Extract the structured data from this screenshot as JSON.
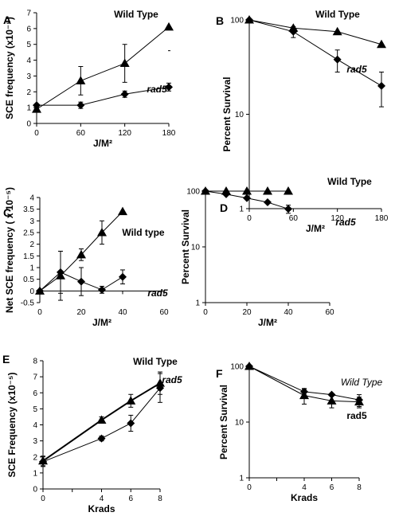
{
  "chart_data": [
    {
      "panel": "A",
      "type": "line",
      "xlabel": "J/M²",
      "ylabel": "SCE frequency (x10⁻⁵)",
      "xlim": [
        0,
        180
      ],
      "ylim": [
        0,
        7
      ],
      "xticks": [
        0,
        60,
        120,
        180
      ],
      "yticks": [
        0,
        1,
        2,
        3,
        4,
        5,
        6,
        7
      ],
      "yscale": "linear",
      "grid": false,
      "series": [
        {
          "name": "Wild Type",
          "marker": "triangle",
          "x": [
            0,
            60,
            120,
            180
          ],
          "y": [
            0.9,
            2.7,
            3.8,
            6.1
          ],
          "err": [
            0.1,
            0.9,
            1.2,
            0
          ]
        },
        {
          "name": "rad5",
          "marker": "diamond",
          "x": [
            0,
            60,
            120,
            180
          ],
          "y": [
            1.15,
            1.15,
            1.85,
            2.3
          ],
          "err": [
            0,
            0.2,
            0.2,
            0.25
          ]
        }
      ]
    },
    {
      "panel": "B",
      "type": "line",
      "xlabel": "J/M²",
      "ylabel": "Percent Survival",
      "xlim": [
        0,
        180
      ],
      "ylim": [
        1,
        100
      ],
      "xticks": [
        0,
        60,
        120,
        180
      ],
      "yticks": [
        1,
        10,
        100
      ],
      "yscale": "log",
      "grid": false,
      "series": [
        {
          "name": "Wild Type",
          "marker": "triangle",
          "x": [
            0,
            60,
            120,
            180
          ],
          "y": [
            100,
            82,
            75,
            55
          ],
          "err": [
            0,
            0,
            0,
            0
          ]
        },
        {
          "name": "rad5",
          "marker": "diamond",
          "x": [
            0,
            60,
            120,
            180
          ],
          "y": [
            100,
            75,
            38,
            20
          ],
          "err": [
            0,
            10,
            10,
            8
          ]
        }
      ]
    },
    {
      "panel": "C",
      "type": "line",
      "xlabel": "J/M²",
      "ylabel": "Net SCE frequency ( x 10⁻⁵)",
      "xlim": [
        0,
        60
      ],
      "ylim": [
        -0.5,
        4
      ],
      "xticks": [
        0,
        20,
        40,
        60
      ],
      "yticks": [
        -0.5,
        0,
        0.5,
        1,
        1.5,
        2,
        2.5,
        3,
        3.5,
        4
      ],
      "yscale": "linear",
      "grid": false,
      "series": [
        {
          "name": "Wild type",
          "marker": "triangle",
          "x": [
            0,
            10,
            20,
            30,
            40
          ],
          "y": [
            0,
            0.65,
            1.55,
            2.5,
            3.4
          ],
          "err": [
            0,
            1.05,
            0.25,
            0.5,
            0
          ]
        },
        {
          "name": "rad5",
          "marker": "diamond",
          "x": [
            0,
            10,
            20,
            30,
            40
          ],
          "y": [
            0,
            0.8,
            0.4,
            0.05,
            0.6
          ],
          "err": [
            0,
            0.9,
            0.6,
            0.15,
            0.3
          ]
        }
      ]
    },
    {
      "panel": "D",
      "type": "line",
      "xlabel": "J/M²",
      "ylabel": "Percent Survival",
      "xlim": [
        0,
        60
      ],
      "ylim": [
        1,
        100
      ],
      "xticks": [
        0,
        20,
        40,
        60
      ],
      "yticks": [
        1,
        10,
        100
      ],
      "yscale": "log",
      "grid": false,
      "series": [
        {
          "name": "Wild Type",
          "marker": "triangle",
          "x": [
            0,
            10,
            20,
            30,
            40
          ],
          "y": [
            100,
            100,
            100,
            100,
            100
          ],
          "err": [
            0,
            0,
            0,
            0,
            0
          ]
        },
        {
          "name": "rad5",
          "marker": "diamond",
          "x": [
            0,
            10,
            20,
            30,
            40
          ],
          "y": [
            100,
            88,
            75,
            63,
            48
          ],
          "err": [
            0,
            0,
            0,
            0,
            8
          ]
        }
      ]
    },
    {
      "panel": "E",
      "type": "line",
      "xlabel": "Krads",
      "ylabel": "SCE  Frequency (x10⁻⁵)",
      "xlim": [
        0,
        8
      ],
      "ylim": [
        0,
        8
      ],
      "xticks": [
        0,
        2,
        4,
        6,
        8
      ],
      "xtick_labels": [
        "0",
        "",
        "4",
        "6",
        "8"
      ],
      "yticks": [
        0,
        1,
        2,
        3,
        4,
        5,
        6,
        7,
        8
      ],
      "yscale": "linear",
      "grid": false,
      "series": [
        {
          "name": "Wild Type",
          "marker": "triangle",
          "x": [
            0,
            4,
            6,
            8
          ],
          "y": [
            1.75,
            4.3,
            5.5,
            6.6
          ],
          "err": [
            0.3,
            0.2,
            0.4,
            0.7
          ]
        },
        {
          "name": "rad5",
          "marker": "diamond",
          "x": [
            0,
            4,
            6,
            8
          ],
          "y": [
            1.7,
            3.15,
            4.1,
            6.3
          ],
          "err": [
            0.3,
            0.15,
            0.5,
            0.9
          ]
        }
      ]
    },
    {
      "panel": "F",
      "type": "line",
      "xlabel": "Krads",
      "ylabel": "Percent Survival",
      "xlim": [
        0,
        8
      ],
      "ylim": [
        1,
        100
      ],
      "xticks": [
        0,
        2,
        4,
        6,
        8
      ],
      "xtick_labels": [
        "0",
        "",
        "4",
        "6",
        "8"
      ],
      "yticks": [
        1,
        10,
        100
      ],
      "yscale": "log",
      "grid": false,
      "series": [
        {
          "name": "rad5",
          "marker": "diamond",
          "x": [
            0,
            4,
            6,
            8
          ],
          "y": [
            100,
            35,
            31,
            25
          ],
          "err": [
            0,
            5,
            0,
            6
          ]
        },
        {
          "name": "Wild Type",
          "marker": "triangle",
          "x": [
            0,
            4,
            6,
            8
          ],
          "y": [
            100,
            30,
            24,
            23
          ],
          "err": [
            0,
            9,
            6,
            5
          ]
        }
      ]
    }
  ]
}
